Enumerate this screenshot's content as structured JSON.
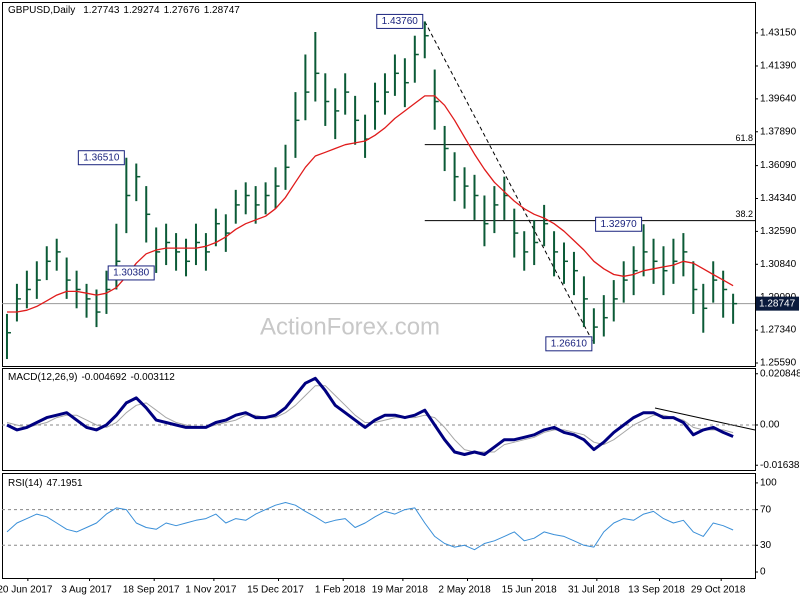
{
  "chart_data": [
    {
      "type": "ohlc",
      "title": "GBPUSD,Daily",
      "open": 1.27743,
      "color": "#0b5a36",
      "high": [
        1.282,
        1.298,
        1.305,
        1.31,
        1.318,
        1.322,
        1.312,
        1.305,
        1.298,
        1.295,
        1.305,
        1.33,
        1.3651,
        1.362,
        1.35,
        1.328,
        1.33,
        1.325,
        1.322,
        1.33,
        1.325,
        1.338,
        1.335,
        1.348,
        1.352,
        1.35,
        1.352,
        1.36,
        1.372,
        1.4,
        1.42,
        1.432,
        1.41,
        1.402,
        1.41,
        1.398,
        1.388,
        1.405,
        1.41,
        1.42,
        1.418,
        1.43,
        1.4376,
        1.412,
        1.382,
        1.368,
        1.36,
        1.356,
        1.345,
        1.35,
        1.355,
        1.338,
        1.326,
        1.332,
        1.34,
        1.326,
        1.32,
        1.315,
        1.302,
        1.285,
        1.292,
        1.3,
        1.31,
        1.318,
        1.3297,
        1.322,
        1.318,
        1.322,
        1.325,
        1.31,
        1.298,
        1.31,
        1.305,
        1.29274
      ],
      "low": [
        1.258,
        1.278,
        1.285,
        1.29,
        1.3,
        1.305,
        1.29,
        1.285,
        1.28,
        1.275,
        1.282,
        1.295,
        1.325,
        1.342,
        1.32,
        1.3038,
        1.308,
        1.305,
        1.302,
        1.308,
        1.305,
        1.318,
        1.315,
        1.33,
        1.335,
        1.33,
        1.335,
        1.338,
        1.348,
        1.365,
        1.385,
        1.395,
        1.382,
        1.375,
        1.388,
        1.372,
        1.365,
        1.38,
        1.388,
        1.398,
        1.392,
        1.405,
        1.418,
        1.38,
        1.358,
        1.342,
        1.338,
        1.332,
        1.318,
        1.325,
        1.332,
        1.312,
        1.305,
        1.308,
        1.318,
        1.302,
        1.298,
        1.292,
        1.275,
        1.2661,
        1.27,
        1.278,
        1.288,
        1.292,
        1.302,
        1.298,
        1.292,
        1.298,
        1.302,
        1.282,
        1.272,
        1.288,
        1.28,
        1.27676
      ],
      "close": [
        1.272,
        1.29,
        1.295,
        1.3,
        1.31,
        1.315,
        1.3,
        1.295,
        1.29,
        1.283,
        1.295,
        1.31,
        1.345,
        1.355,
        1.335,
        1.315,
        1.32,
        1.315,
        1.31,
        1.32,
        1.315,
        1.33,
        1.325,
        1.34,
        1.345,
        1.34,
        1.345,
        1.35,
        1.36,
        1.385,
        1.4,
        1.41,
        1.395,
        1.39,
        1.4,
        1.385,
        1.375,
        1.395,
        1.4,
        1.41,
        1.405,
        1.42,
        1.43,
        1.395,
        1.37,
        1.355,
        1.35,
        1.345,
        1.33,
        1.34,
        1.345,
        1.325,
        1.315,
        1.32,
        1.33,
        1.315,
        1.31,
        1.305,
        1.29,
        1.275,
        1.28,
        1.29,
        1.3,
        1.305,
        1.315,
        1.31,
        1.305,
        1.31,
        1.315,
        1.295,
        1.285,
        1.3,
        1.295,
        1.28747
      ],
      "ma": {
        "color": "#e01b1b",
        "values": [
          1.283,
          1.283,
          1.284,
          1.286,
          1.289,
          1.292,
          1.294,
          1.294,
          1.293,
          1.292,
          1.293,
          1.296,
          1.302,
          1.309,
          1.314,
          1.316,
          1.317,
          1.317,
          1.317,
          1.317,
          1.318,
          1.32,
          1.323,
          1.327,
          1.33,
          1.332,
          1.334,
          1.338,
          1.344,
          1.352,
          1.36,
          1.366,
          1.368,
          1.37,
          1.372,
          1.373,
          1.374,
          1.377,
          1.381,
          1.386,
          1.39,
          1.394,
          1.398,
          1.398,
          1.393,
          1.385,
          1.376,
          1.367,
          1.359,
          1.352,
          1.347,
          1.342,
          1.338,
          1.335,
          1.333,
          1.33,
          1.326,
          1.321,
          1.316,
          1.31,
          1.306,
          1.303,
          1.302,
          1.303,
          1.305,
          1.306,
          1.307,
          1.308,
          1.31,
          1.309,
          1.306,
          1.303,
          1.3,
          1.297
        ]
      },
      "xlim": [
        -0.5,
        75.2
      ],
      "ylim": [
        1.2543,
        1.4474
      ],
      "yticks": [
        {
          "value": 1.4315,
          "label": "1.43150"
        },
        {
          "value": 1.4139,
          "label": "1.41390"
        },
        {
          "value": 1.3964,
          "label": "1.39640"
        },
        {
          "value": 1.3789,
          "label": "1.37890"
        },
        {
          "value": 1.3609,
          "label": "1.36090"
        },
        {
          "value": 1.3434,
          "label": "1.34340"
        },
        {
          "value": 1.3259,
          "label": "1.32590"
        },
        {
          "value": 1.3084,
          "label": "1.30840"
        },
        {
          "value": 1.2909,
          "label": "1.29090"
        },
        {
          "value": 1.2734,
          "label": "1.27340"
        },
        {
          "value": 1.2559,
          "label": "1.25590"
        }
      ],
      "annotations": [
        {
          "value": 1.4376,
          "label": "1.43760",
          "index": 42
        },
        {
          "value": 1.3651,
          "label": "1.36510",
          "index": 12
        },
        {
          "value": 1.3038,
          "label": "1.30380",
          "index": 15
        },
        {
          "value": 1.3297,
          "label": "1.32970",
          "index": 64
        },
        {
          "value": 1.2661,
          "label": "1.26610",
          "index": 59
        }
      ],
      "fib_levels": [
        61.8,
        38.2
      ],
      "watermark": "ActionForex.com"
    },
    {
      "type": "macd",
      "title": "MACD(12,26,9)",
      "series": [
        {
          "color": "#000080",
          "values": [
            0.0,
            -0.002,
            -0.001,
            0.001,
            0.003,
            0.004,
            0.005,
            0.002,
            -0.001,
            -0.002,
            0.0,
            0.004,
            0.009,
            0.011,
            0.007,
            0.002,
            0.001,
            0.0,
            -0.001,
            -0.001,
            -0.001,
            0.001,
            0.002,
            0.004,
            0.005,
            0.003,
            0.003,
            0.004,
            0.007,
            0.012,
            0.017,
            0.019,
            0.014,
            0.008,
            0.005,
            0.002,
            -0.001,
            0.002,
            0.004,
            0.004,
            0.003,
            0.004,
            0.006,
            0.0,
            -0.006,
            -0.011,
            -0.012,
            -0.011,
            -0.012,
            -0.009,
            -0.006,
            -0.006,
            -0.005,
            -0.004,
            -0.002,
            -0.001,
            -0.003,
            -0.004,
            -0.006,
            -0.01,
            -0.007,
            -0.003,
            0.0,
            0.003,
            0.005,
            0.005,
            0.003,
            0.003,
            0.001,
            -0.004,
            -0.002,
            -0.001,
            -0.003,
            -0.004692
          ]
        },
        {
          "color": "#a6a6a6",
          "values": [
            0.001,
            0.0,
            -0.001,
            0.0,
            0.001,
            0.003,
            0.004,
            0.004,
            0.002,
            0.0,
            -0.001,
            0.001,
            0.005,
            0.008,
            0.009,
            0.006,
            0.003,
            0.001,
            0.0,
            -0.001,
            -0.001,
            0.0,
            0.001,
            0.002,
            0.004,
            0.004,
            0.003,
            0.003,
            0.005,
            0.008,
            0.012,
            0.016,
            0.016,
            0.012,
            0.008,
            0.004,
            0.001,
            0.001,
            0.002,
            0.003,
            0.003,
            0.003,
            0.004,
            0.003,
            -0.001,
            -0.006,
            -0.01,
            -0.011,
            -0.011,
            -0.011,
            -0.008,
            -0.007,
            -0.006,
            -0.005,
            -0.003,
            -0.002,
            -0.002,
            -0.003,
            -0.004,
            -0.007,
            -0.008,
            -0.006,
            -0.003,
            0.0,
            0.002,
            0.004,
            0.004,
            0.003,
            0.002,
            -0.001,
            -0.002,
            -0.002,
            -0.002,
            -0.003112
          ]
        }
      ],
      "xlim": [
        -0.5,
        75.2
      ],
      "ylim": [
        -0.01832,
        0.02278
      ],
      "yticks": [
        0.020848,
        {
          "value": 0,
          "label": "0.00"
        },
        -0.016389
      ],
      "guides": [
        0
      ]
    },
    {
      "type": "rsi",
      "title": "RSI(14)",
      "color": "#3a8fd8",
      "values": [
        45,
        55,
        60,
        65,
        62,
        55,
        48,
        45,
        50,
        55,
        65,
        72,
        70,
        55,
        50,
        48,
        55,
        52,
        55,
        58,
        60,
        65,
        55,
        60,
        58,
        65,
        70,
        75,
        78,
        75,
        68,
        62,
        55,
        58,
        60,
        50,
        55,
        62,
        68,
        65,
        70,
        72,
        55,
        40,
        32,
        28,
        30,
        25,
        32,
        35,
        40,
        45,
        35,
        38,
        45,
        42,
        40,
        35,
        30,
        28,
        45,
        55,
        60,
        58,
        65,
        68,
        60,
        55,
        58,
        45,
        40,
        55,
        52,
        47.1951
      ],
      "xlim": [
        -0.5,
        75.2
      ],
      "ylim": [
        -6.7,
        110
      ],
      "yticks": [
        100,
        70,
        30,
        0
      ],
      "guides": [
        70,
        30
      ],
      "xticks": [
        {
          "value": 2.1,
          "label": "20 Jun 2017"
        },
        {
          "value": 8.3,
          "label": "3 Aug 2017"
        },
        {
          "value": 14.8,
          "label": "18 Sep 2017"
        },
        {
          "value": 20.8,
          "label": "1 Nov 2017"
        },
        {
          "value": 27.3,
          "label": "15 Dec 2017"
        },
        {
          "value": 33.8,
          "label": "1 Feb 2018"
        },
        {
          "value": 39.8,
          "label": "19 Mar 2018"
        },
        {
          "value": 46.3,
          "label": "2 May 2018"
        },
        {
          "value": 52.8,
          "label": "15 Jun 2018"
        },
        {
          "value": 59.3,
          "label": "31 Jul 2018"
        },
        {
          "value": 65.6,
          "label": "13 Sep 2018"
        },
        {
          "value": 71.8,
          "label": "29 Oct 2018"
        }
      ]
    }
  ]
}
